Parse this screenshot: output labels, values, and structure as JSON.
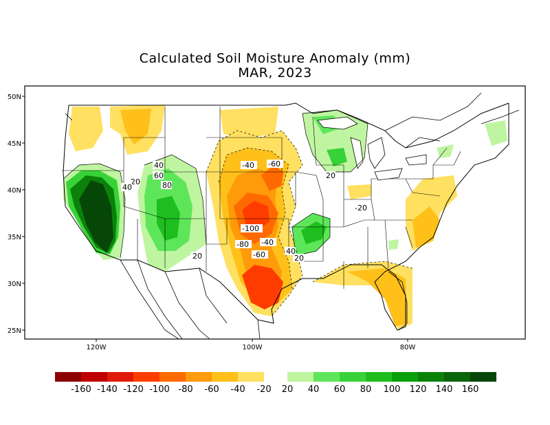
{
  "title": "Calculated Soil Moisture Anomaly (mm)",
  "subtitle": "MAR, 2023",
  "lat_labels": [
    "50N",
    "45N",
    "40N",
    "35N",
    "30N",
    "25N"
  ],
  "lon_labels": [
    "120W",
    "100W",
    "80W"
  ],
  "contour_labels": [
    "40",
    "20",
    "40",
    "60",
    "80",
    "20",
    "-40",
    "-60",
    "-100",
    "-80",
    "-40",
    "-60",
    "40",
    "20",
    "20",
    "-20"
  ],
  "legend": {
    "labels": [
      "-160",
      "-140",
      "-120",
      "-100",
      "-80",
      "-60",
      "-40",
      "-20",
      "20",
      "40",
      "60",
      "80",
      "100",
      "120",
      "140",
      "160"
    ],
    "dry_colors": [
      "#8c0000",
      "#c00000",
      "#e01a0a",
      "#ff3c00",
      "#ff6a00",
      "#ff9a0a",
      "#ffc01a",
      "#ffe060"
    ],
    "wet_colors": [
      "#bff5a0",
      "#5ee65a",
      "#38d238",
      "#1ebe1e",
      "#0aa00a",
      "#0a820a",
      "#0a640a",
      "#064606"
    ]
  },
  "chart_data": {
    "type": "heatmap",
    "title": "Calculated Soil Moisture Anomaly (mm)",
    "subtitle": "MAR, 2023",
    "units": "mm",
    "lat_range": [
      24,
      51
    ],
    "lon_range": [
      -129,
      -64
    ],
    "lat_ticks": [
      50,
      45,
      40,
      35,
      30,
      25
    ],
    "lon_ticks": [
      -120,
      -100,
      -80
    ],
    "contour_levels": [
      -160,
      -140,
      -120,
      -100,
      -80,
      -60,
      -40,
      -20,
      20,
      40,
      60,
      80,
      100,
      120,
      140,
      160
    ]
  }
}
